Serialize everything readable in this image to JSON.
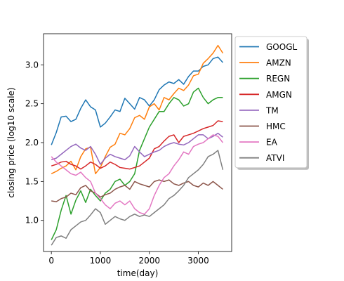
{
  "chart_data": {
    "type": "line",
    "title": "",
    "xlabel": "time(day)",
    "ylabel": "closing price (log10 scale)",
    "xlim": [
      -160,
      3680
    ],
    "ylim": [
      0.6,
      3.4
    ],
    "xticks": [
      0,
      1000,
      2000,
      3000
    ],
    "xtick_labels": [
      "0",
      "1000",
      "2000",
      "3000"
    ],
    "yticks": [
      1.0,
      1.5,
      2.0,
      2.5,
      3.0
    ],
    "ytick_labels": [
      "1.0",
      "1.5",
      "2.0",
      "2.5",
      "3.0"
    ],
    "grid": false,
    "legend_position": "outside-right",
    "x": [
      0,
      100,
      200,
      300,
      400,
      500,
      600,
      700,
      800,
      900,
      1000,
      1100,
      1200,
      1300,
      1400,
      1500,
      1600,
      1700,
      1800,
      1900,
      2000,
      2100,
      2200,
      2300,
      2400,
      2500,
      2600,
      2700,
      2800,
      2900,
      3000,
      3100,
      3200,
      3300,
      3400,
      3500
    ],
    "series": [
      {
        "name": "GOOGL",
        "color": "#1f77b4",
        "values": [
          1.97,
          2.13,
          2.33,
          2.34,
          2.27,
          2.3,
          2.44,
          2.55,
          2.46,
          2.42,
          2.2,
          2.25,
          2.33,
          2.42,
          2.4,
          2.57,
          2.5,
          2.43,
          2.58,
          2.55,
          2.47,
          2.55,
          2.68,
          2.74,
          2.78,
          2.76,
          2.81,
          2.75,
          2.85,
          2.92,
          2.92,
          2.98,
          3.0,
          3.08,
          3.1,
          3.03
        ]
      },
      {
        "name": "AMZN",
        "color": "#ff7f0e",
        "values": [
          1.6,
          1.63,
          1.67,
          1.7,
          1.76,
          1.65,
          1.82,
          1.92,
          1.94,
          1.6,
          1.68,
          1.82,
          1.94,
          1.98,
          2.12,
          2.1,
          2.18,
          2.32,
          2.35,
          2.3,
          2.46,
          2.5,
          2.42,
          2.58,
          2.55,
          2.63,
          2.7,
          2.67,
          2.74,
          2.86,
          2.88,
          3.02,
          3.08,
          3.15,
          3.25,
          3.15
        ]
      },
      {
        "name": "REGN",
        "color": "#2ca02c",
        "values": [
          0.75,
          0.88,
          1.13,
          1.32,
          1.08,
          1.26,
          1.38,
          1.23,
          1.4,
          1.32,
          1.25,
          1.35,
          1.4,
          1.5,
          1.53,
          1.45,
          1.5,
          1.6,
          1.9,
          2.05,
          2.2,
          2.3,
          2.4,
          2.4,
          2.5,
          2.58,
          2.55,
          2.47,
          2.5,
          2.65,
          2.7,
          2.58,
          2.5,
          2.55,
          2.58,
          2.58
        ]
      },
      {
        "name": "AMGN",
        "color": "#d62728",
        "values": [
          1.7,
          1.72,
          1.75,
          1.76,
          1.72,
          1.7,
          1.66,
          1.7,
          1.75,
          1.72,
          1.67,
          1.7,
          1.75,
          1.72,
          1.68,
          1.67,
          1.66,
          1.68,
          1.7,
          1.75,
          1.8,
          1.92,
          1.95,
          2.02,
          2.08,
          2.1,
          2.0,
          2.08,
          2.1,
          2.12,
          2.15,
          2.18,
          2.2,
          2.22,
          2.28,
          2.27
        ]
      },
      {
        "name": "TM",
        "color": "#9467bd",
        "values": [
          1.78,
          1.8,
          1.85,
          1.9,
          1.95,
          1.98,
          1.93,
          1.9,
          1.95,
          1.85,
          1.72,
          1.8,
          1.85,
          1.82,
          1.8,
          1.78,
          1.83,
          1.95,
          1.88,
          1.82,
          1.85,
          1.88,
          1.9,
          1.95,
          1.98,
          2.0,
          1.98,
          1.97,
          2.0,
          2.05,
          2.1,
          2.1,
          2.05,
          2.08,
          2.12,
          2.07
        ]
      },
      {
        "name": "HMC",
        "color": "#8c564b",
        "values": [
          1.25,
          1.24,
          1.28,
          1.3,
          1.35,
          1.33,
          1.42,
          1.45,
          1.38,
          1.35,
          1.3,
          1.33,
          1.35,
          1.4,
          1.43,
          1.45,
          1.4,
          1.5,
          1.47,
          1.45,
          1.43,
          1.5,
          1.52,
          1.5,
          1.52,
          1.47,
          1.45,
          1.48,
          1.5,
          1.45,
          1.43,
          1.48,
          1.45,
          1.5,
          1.45,
          1.4
        ]
      },
      {
        "name": "EA",
        "color": "#e377c2",
        "values": [
          1.82,
          1.75,
          1.7,
          1.65,
          1.6,
          1.58,
          1.62,
          1.55,
          1.5,
          1.35,
          1.28,
          1.2,
          1.15,
          1.22,
          1.25,
          1.2,
          1.25,
          1.15,
          1.1,
          1.08,
          1.15,
          1.32,
          1.45,
          1.55,
          1.6,
          1.7,
          1.78,
          1.88,
          1.85,
          1.95,
          1.98,
          2.0,
          2.05,
          2.1,
          2.08,
          2.0
        ]
      },
      {
        "name": "ATVI",
        "color": "#7f7f7f",
        "values": [
          0.68,
          0.78,
          0.8,
          0.77,
          0.88,
          0.93,
          0.98,
          1.0,
          1.07,
          1.15,
          1.1,
          0.95,
          1.0,
          1.05,
          1.02,
          1.0,
          1.05,
          1.08,
          1.05,
          1.07,
          1.05,
          1.1,
          1.15,
          1.2,
          1.28,
          1.32,
          1.38,
          1.45,
          1.55,
          1.6,
          1.65,
          1.72,
          1.82,
          1.85,
          1.9,
          1.65
        ]
      }
    ]
  }
}
